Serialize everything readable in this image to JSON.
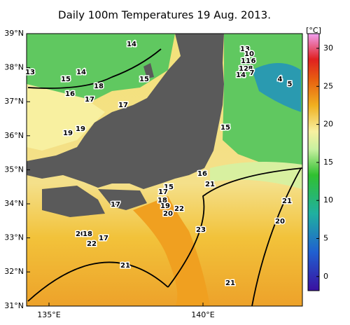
{
  "title": "Daily 100m Temperatures 19 Aug. 2013.",
  "lat_labels": [
    "39°N",
    "38°N",
    "37°N",
    "36°N",
    "35°N",
    "34°N",
    "33°N",
    "32°N",
    "31°N"
  ],
  "lon_labels": [
    "135°E",
    "140°E"
  ],
  "colorbar": {
    "unit": "[°C]",
    "ticks": [
      30,
      25,
      20,
      15,
      10,
      5,
      0
    ]
  },
  "contour_labels": [
    14,
    13,
    10,
    11,
    6,
    12,
    8,
    14,
    7,
    4,
    5,
    13,
    15,
    14,
    15,
    18,
    16,
    17,
    17,
    15,
    19,
    19,
    16,
    21,
    15,
    17,
    18,
    17,
    19,
    22,
    20,
    21,
    20,
    23,
    20,
    18,
    17,
    22,
    21,
    21
  ]
}
